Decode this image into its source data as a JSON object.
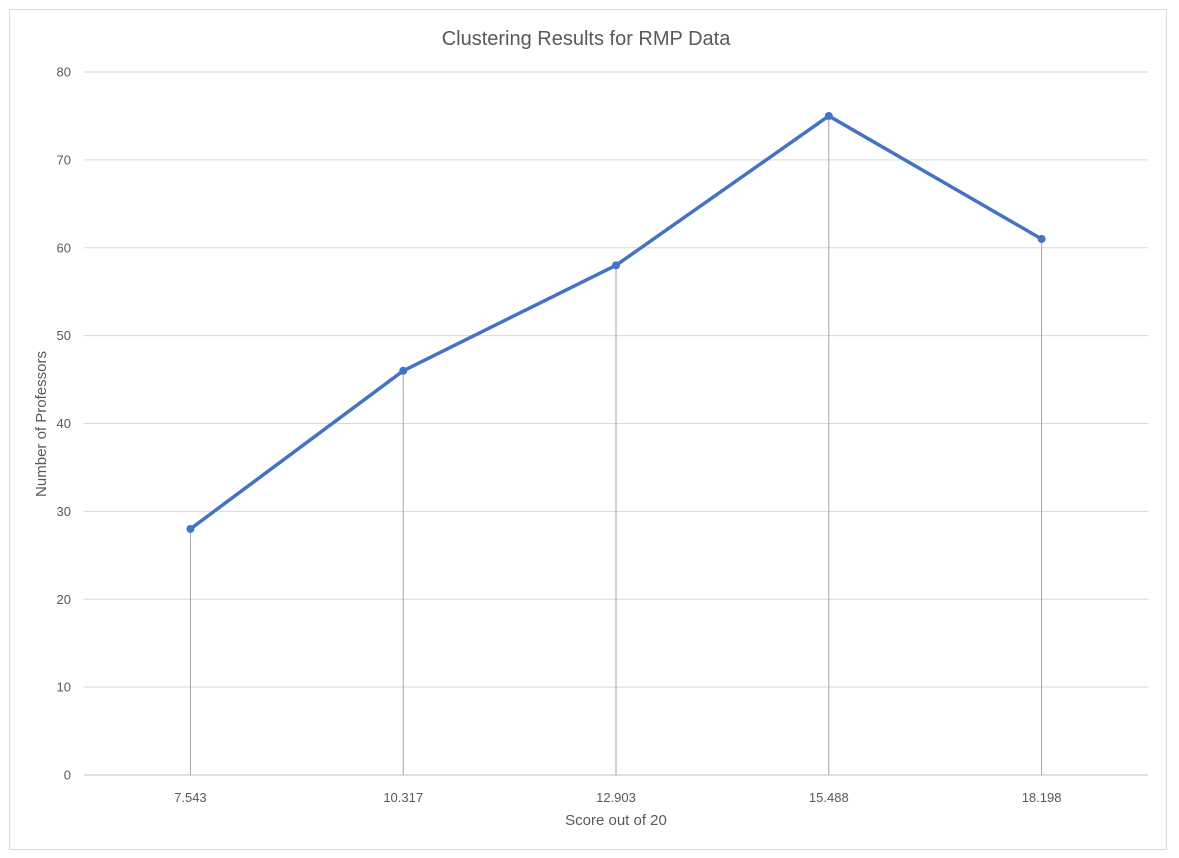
{
  "chart_data": {
    "type": "line",
    "title": "Clustering Results for RMP Data",
    "xlabel": "Score out of 20",
    "ylabel": "Number of Professors",
    "categories": [
      "7.543",
      "10.317",
      "12.903",
      "15.488",
      "18.198"
    ],
    "series": [
      {
        "values": [
          28,
          46,
          58,
          75,
          61
        ],
        "color": "#4472c4"
      }
    ],
    "ylim": [
      0,
      80
    ],
    "yticks": [
      "0",
      "10",
      "20",
      "30",
      "40",
      "50",
      "60",
      "70",
      "80"
    ],
    "grid": true,
    "drop_lines": true,
    "legend": "none"
  }
}
